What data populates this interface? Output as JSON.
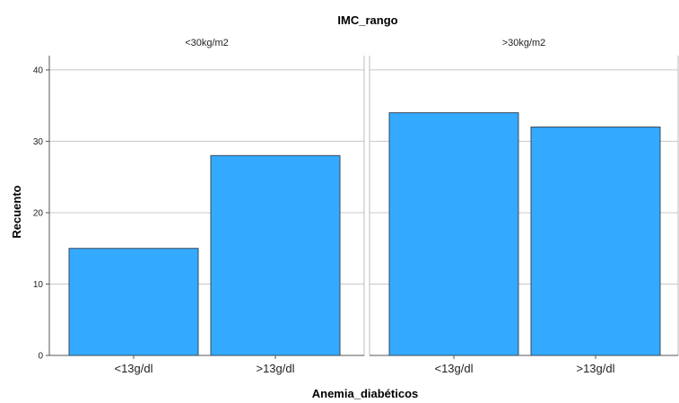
{
  "chart_data": {
    "type": "bar",
    "title": "IMC_rango",
    "xlabel": "Anemia_diabéticos",
    "ylabel": "Recuento",
    "ylim": [
      0,
      42
    ],
    "yticks": [
      0,
      10,
      20,
      30,
      40
    ],
    "grid": true,
    "bar_color": "#33aaff",
    "bar_stroke": "#3a4a5a",
    "categories": [
      "<13g/dl",
      ">13g/dl"
    ],
    "panels": [
      {
        "label": "<30kg/m2",
        "values": [
          15,
          28
        ]
      },
      {
        "label": ">30kg/m2",
        "values": [
          34,
          32
        ]
      }
    ]
  }
}
